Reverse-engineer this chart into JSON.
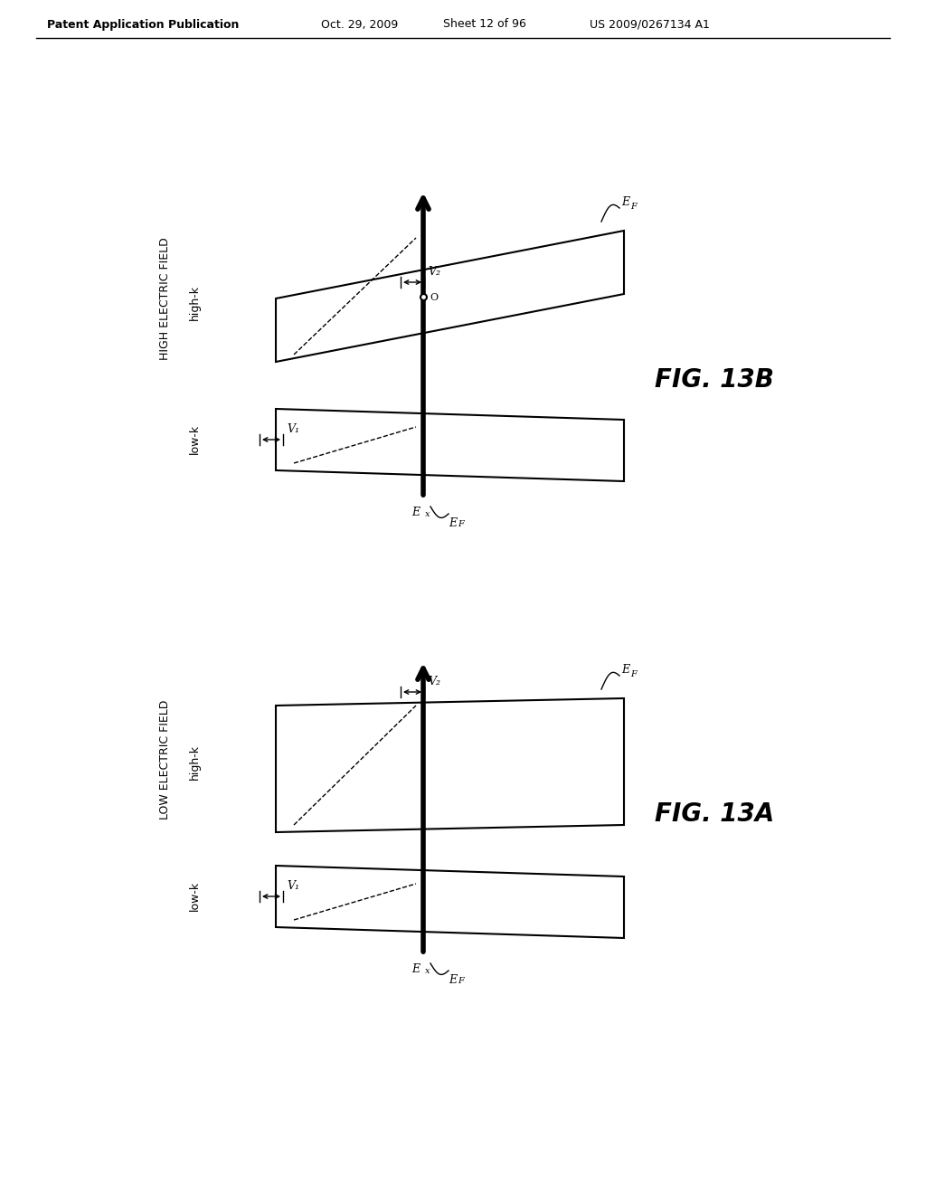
{
  "bg_color": "#ffffff",
  "header_text": "Patent Application Publication",
  "header_date": "Oct. 29, 2009",
  "header_sheet": "Sheet 12 of 96",
  "header_patent": "US 2009/0267134 A1",
  "fig_a_label": "FIG. 13A",
  "fig_b_label": "FIG. 13B",
  "fig_a_title1": "LOW ELECTRIC FIELD",
  "fig_a_title2": "high-k",
  "fig_a_title3": "low-k",
  "fig_b_title1": "HIGH ELECTRIC FIELD",
  "fig_b_title2": "high-k",
  "fig_b_title3": "low-k"
}
